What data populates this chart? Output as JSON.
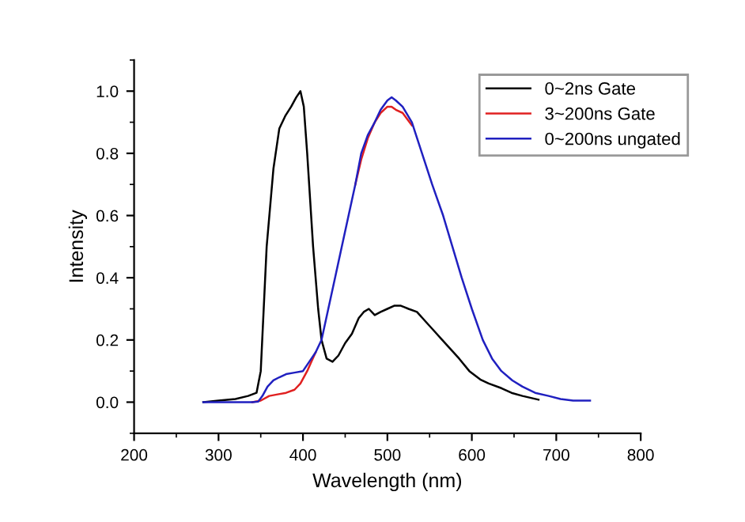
{
  "chart_data": {
    "type": "line",
    "xlabel": "Wavelength (nm)",
    "ylabel": "Intensity",
    "xlim": [
      200,
      800
    ],
    "ylim": [
      -0.1,
      1.1
    ],
    "xticks": [
      200,
      300,
      400,
      500,
      600,
      700,
      800
    ],
    "yticks": [
      {
        "value": 0,
        "label": "0.0"
      },
      {
        "value": 0.2,
        "label": "0.2"
      },
      {
        "value": 0.4,
        "label": "0.4"
      },
      {
        "value": 0.6,
        "label": "0.6"
      },
      {
        "value": 0.8,
        "label": "0.8"
      },
      {
        "value": 1,
        "label": "1.0"
      }
    ],
    "grid": false,
    "legend": "top right",
    "marker": "none",
    "line_style": "solid",
    "series": [
      {
        "name": "0~2ns Gate",
        "color": "#000000",
        "x": [
          282,
          300,
          320,
          335,
          345,
          350,
          357,
          365,
          372,
          379,
          386,
          392,
          397,
          401,
          405,
          412,
          418,
          422,
          428,
          435,
          442,
          450,
          458,
          466,
          472,
          478,
          485,
          492,
          500,
          508,
          516,
          525,
          535,
          545,
          555,
          565,
          575,
          585,
          597,
          610,
          620,
          635,
          647,
          660,
          679
        ],
        "values": [
          0,
          0.005,
          0.01,
          0.02,
          0.03,
          0.1,
          0.5,
          0.75,
          0.88,
          0.92,
          0.95,
          0.98,
          1.0,
          0.95,
          0.8,
          0.5,
          0.3,
          0.2,
          0.14,
          0.13,
          0.15,
          0.19,
          0.22,
          0.27,
          0.29,
          0.3,
          0.28,
          0.29,
          0.3,
          0.31,
          0.31,
          0.3,
          0.29,
          0.26,
          0.23,
          0.2,
          0.17,
          0.14,
          0.1,
          0.073,
          0.06,
          0.045,
          0.03,
          0.02,
          0.008
        ]
      },
      {
        "name": "3~200ns Gate",
        "color": "#e02020",
        "x": [
          340,
          350,
          360,
          370,
          380,
          390,
          397,
          405,
          410,
          415,
          438,
          462,
          469,
          477,
          485,
          492,
          500,
          505,
          510,
          518,
          529
        ],
        "values": [
          0,
          0.005,
          0.02,
          0.025,
          0.03,
          0.04,
          0.06,
          0.1,
          0.13,
          0.16,
          null,
          0.7,
          0.78,
          0.85,
          0.9,
          0.93,
          0.95,
          0.95,
          0.94,
          0.93,
          0.89
        ]
      },
      {
        "name": "0~200ns ungated",
        "color": "#2020c0",
        "x": [
          282,
          300,
          320,
          340,
          347,
          352,
          358,
          365,
          372,
          380,
          390,
          400,
          410,
          415,
          422,
          430,
          438,
          446,
          454,
          462,
          469,
          477,
          485,
          492,
          500,
          505,
          510,
          518,
          529,
          541,
          553,
          566,
          577,
          588,
          600,
          613,
          624,
          635,
          648,
          660,
          675,
          691,
          705,
          720,
          740
        ],
        "values": [
          0,
          0,
          0,
          0,
          0.002,
          0.02,
          0.05,
          0.07,
          0.08,
          0.09,
          0.095,
          0.1,
          0.14,
          0.16,
          0.2,
          0.3,
          0.4,
          0.5,
          0.6,
          0.7,
          0.8,
          0.86,
          0.9,
          0.94,
          0.97,
          0.98,
          0.97,
          0.95,
          0.9,
          0.8,
          0.7,
          0.6,
          0.5,
          0.4,
          0.3,
          0.2,
          0.14,
          0.1,
          0.07,
          0.05,
          0.03,
          0.02,
          0.01,
          0.005,
          0.005
        ]
      }
    ]
  }
}
